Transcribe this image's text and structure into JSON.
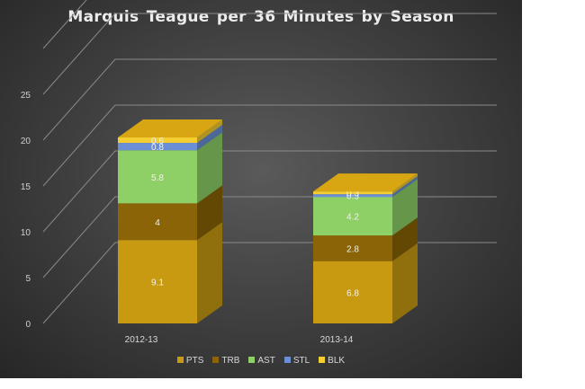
{
  "chart_data": {
    "type": "bar",
    "stacked": true,
    "three_d": true,
    "title": "Marquis  Teague  per  36  Minutes  by  Season",
    "categories": [
      "2012-13",
      "2013-14"
    ],
    "series": [
      {
        "name": "PTS",
        "color": "#c89a12",
        "values": [
          9.1,
          6.8
        ],
        "labels": [
          "9.1",
          "6.8"
        ]
      },
      {
        "name": "TRB",
        "color": "#8a6406",
        "values": [
          4,
          2.8
        ],
        "labels": [
          "4",
          "2.8"
        ]
      },
      {
        "name": "AST",
        "color": "#8ed065",
        "values": [
          5.8,
          4.2
        ],
        "labels": [
          "5.8",
          "4.2"
        ]
      },
      {
        "name": "STL",
        "color": "#6a8fd6",
        "values": [
          0.8,
          0.3
        ],
        "labels": [
          "0.8",
          "0.3"
        ]
      },
      {
        "name": "BLK",
        "color": "#f3cd32",
        "values": [
          0.6,
          0.3
        ],
        "labels": [
          "0.6",
          "0.3"
        ]
      }
    ],
    "yticks": [
      0,
      5,
      10,
      15,
      20,
      25
    ],
    "ylim": [
      0,
      30
    ],
    "grid": true,
    "legend_position": "bottom"
  }
}
